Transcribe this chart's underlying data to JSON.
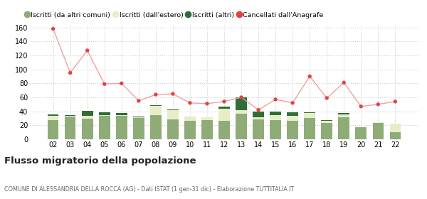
{
  "years": [
    "02",
    "03",
    "04",
    "05",
    "06",
    "07",
    "08",
    "09",
    "10",
    "11",
    "12",
    "13",
    "14",
    "15",
    "16",
    "17",
    "18",
    "19",
    "20",
    "21",
    "22"
  ],
  "iscritti_comuni": [
    27,
    33,
    29,
    34,
    34,
    30,
    35,
    28,
    26,
    27,
    26,
    37,
    28,
    27,
    26,
    30,
    23,
    31,
    17,
    23,
    10
  ],
  "iscritti_estero": [
    7,
    1,
    5,
    1,
    1,
    2,
    13,
    14,
    7,
    5,
    18,
    5,
    4,
    8,
    8,
    8,
    3,
    5,
    0,
    1,
    12
  ],
  "iscritti_altri": [
    2,
    1,
    7,
    4,
    3,
    1,
    1,
    1,
    0,
    0,
    3,
    18,
    8,
    5,
    5,
    1,
    1,
    2,
    0,
    0,
    0
  ],
  "cancellati": [
    158,
    95,
    127,
    79,
    80,
    55,
    64,
    65,
    52,
    51,
    54,
    60,
    42,
    57,
    52,
    90,
    59,
    81,
    47,
    50,
    54
  ],
  "color_comuni": "#8fac78",
  "color_estero": "#e8edc8",
  "color_altri": "#2d6e3a",
  "color_cancellati": "#e84040",
  "color_cancellati_line": "#f0a0a0",
  "bg_color": "#ffffff",
  "grid_color": "#cccccc",
  "ylim": [
    0,
    165
  ],
  "yticks": [
    0,
    20,
    40,
    60,
    80,
    100,
    120,
    140,
    160
  ],
  "title": "Flusso migratorio della popolazione",
  "subtitle": "COMUNE DI ALESSANDRIA DELLA ROCCA (AG) - Dati ISTAT (1 gen-31 dic) - Elaborazione TUTTITALIA.IT",
  "legend_labels": [
    "Iscritti (da altri comuni)",
    "Iscritti (dall'estero)",
    "Iscritti (altri)",
    "Cancellati dall'Anagrafe"
  ]
}
